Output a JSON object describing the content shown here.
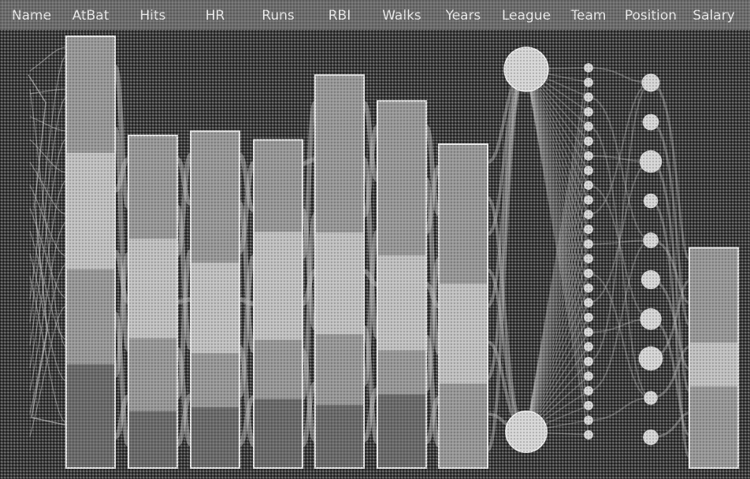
{
  "chart_data": {
    "type": "parallel-sets",
    "dimensions": [
      "Name",
      "AtBat",
      "Hits",
      "HR",
      "Runs",
      "RBI",
      "Walks",
      "Years",
      "League",
      "Team",
      "Position",
      "Salary"
    ],
    "bars": [
      {
        "dimension": "AtBat",
        "height_fraction": 1.0,
        "segments": [
          0.27,
          0.27,
          0.22,
          0.24
        ]
      },
      {
        "dimension": "Hits",
        "height_fraction": 0.77,
        "segments": [
          0.31,
          0.3,
          0.22,
          0.17
        ]
      },
      {
        "dimension": "HR",
        "height_fraction": 0.78,
        "segments": [
          0.39,
          0.27,
          0.16,
          0.18
        ]
      },
      {
        "dimension": "Runs",
        "height_fraction": 0.76,
        "segments": [
          0.28,
          0.33,
          0.18,
          0.21
        ]
      },
      {
        "dimension": "RBI",
        "height_fraction": 0.91,
        "segments": [
          0.4,
          0.26,
          0.18,
          0.16
        ]
      },
      {
        "dimension": "Walks",
        "height_fraction": 0.85,
        "segments": [
          0.42,
          0.26,
          0.12,
          0.2
        ]
      },
      {
        "dimension": "Years",
        "height_fraction": 0.75,
        "segments": [
          0.43,
          0.31,
          0.26
        ]
      },
      {
        "dimension": "Salary",
        "height_fraction": 0.51,
        "segments": [
          0.43,
          0.2,
          0.37
        ]
      }
    ],
    "league_nodes": [
      0.53,
      0.47
    ],
    "team_nodes": [
      0.036,
      0.036,
      0.036,
      0.036,
      0.036,
      0.036,
      0.036,
      0.036,
      0.036,
      0.036,
      0.036,
      0.036,
      0.036,
      0.036,
      0.036,
      0.036,
      0.036,
      0.036,
      0.036,
      0.036,
      0.036,
      0.036,
      0.036,
      0.036,
      0.036,
      0.036
    ],
    "position_nodes": [
      0.1,
      0.08,
      0.15,
      0.06,
      0.07,
      0.11,
      0.14,
      0.17,
      0.05,
      0.07
    ],
    "title": "",
    "xlabel": "",
    "ylabel": "",
    "colors": {
      "bar_light": "#cfcfcf",
      "bar_mid": "#a2a2a2",
      "bar_dark": "#6f6f6f",
      "bar_outline": "#e8e8e8",
      "node": "#d6d6d6",
      "ribbon": "#bdbdbd",
      "header_band": "#6c6c6c",
      "header_text": "#ececec",
      "background": "#3a3a3a"
    }
  }
}
